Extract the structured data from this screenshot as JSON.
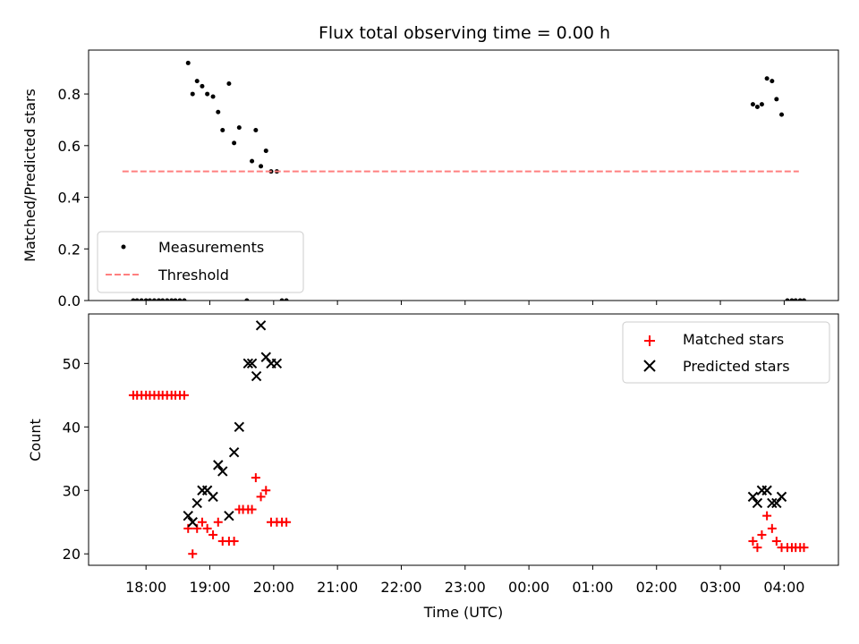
{
  "chart_data": [
    {
      "type": "scatter",
      "title": "Flux total observing time = 0.00 h",
      "xlabel": "",
      "ylabel": "Matched/Predicted stars",
      "ylim": [
        0,
        0.97
      ],
      "yticks": [
        "0.0",
        "0.2",
        "0.4",
        "0.6",
        "0.8"
      ],
      "ytick_values": [
        0,
        0.2,
        0.4,
        0.6,
        0.8
      ],
      "legend_position": "lower-left",
      "series": [
        {
          "name": "Measurements",
          "marker": "dot",
          "color": "#000000",
          "x_hours": [
            17.8,
            17.86,
            17.93,
            18.0,
            18.06,
            18.13,
            18.2,
            18.26,
            18.33,
            18.4,
            18.46,
            18.53,
            18.6,
            18.66,
            18.73,
            18.8,
            18.88,
            18.96,
            19.05,
            19.13,
            19.2,
            19.3,
            19.38,
            19.46,
            19.58,
            19.66,
            19.72,
            19.8,
            19.88,
            19.96,
            20.05,
            20.13,
            20.2,
            27.51,
            27.58,
            27.65,
            27.73,
            27.81,
            27.88,
            27.96,
            28.05,
            28.12,
            28.18,
            28.25,
            28.31
          ],
          "y": [
            0,
            0,
            0,
            0,
            0,
            0,
            0,
            0,
            0,
            0,
            0,
            0,
            0,
            0.92,
            0.8,
            0.85,
            0.83,
            0.8,
            0.79,
            0.73,
            0.66,
            0.84,
            0.61,
            0.67,
            0,
            0.54,
            0.66,
            0.52,
            0.58,
            0.5,
            0.5,
            0,
            0,
            0.76,
            0.75,
            0.76,
            0.86,
            0.85,
            0.78,
            0.72,
            0,
            0,
            0,
            0,
            0
          ]
        },
        {
          "name": "Threshold",
          "marker": "dashed-line",
          "color": "#ff7f7f",
          "x_hours": [
            17.63,
            28.23
          ],
          "y": [
            0.5,
            0.5
          ]
        }
      ]
    },
    {
      "type": "scatter",
      "title": "",
      "xlabel": "Time (UTC)",
      "ylabel": "Count",
      "ylim": [
        18.2,
        57.8
      ],
      "yticks": [
        "20",
        "30",
        "40",
        "50"
      ],
      "ytick_values": [
        20,
        30,
        40,
        50
      ],
      "xticks": [
        "18:00",
        "19:00",
        "20:00",
        "21:00",
        "22:00",
        "23:00",
        "00:00",
        "01:00",
        "02:00",
        "03:00",
        "04:00"
      ],
      "xtick_hours": [
        18,
        19,
        20,
        21,
        22,
        23,
        24,
        25,
        26,
        27,
        28
      ],
      "xlim_hours": [
        17.1,
        28.85
      ],
      "legend_position": "upper-right",
      "series": [
        {
          "name": "Matched stars",
          "marker": "plus",
          "color": "#ff0000",
          "x_hours": [
            17.8,
            17.86,
            17.93,
            18.0,
            18.06,
            18.13,
            18.2,
            18.26,
            18.33,
            18.4,
            18.46,
            18.53,
            18.6,
            18.66,
            18.73,
            18.8,
            18.88,
            18.96,
            19.05,
            19.13,
            19.2,
            19.3,
            19.38,
            19.46,
            19.52,
            19.6,
            19.66,
            19.72,
            19.8,
            19.88,
            19.96,
            20.05,
            20.13,
            20.2,
            27.51,
            27.58,
            27.65,
            27.73,
            27.81,
            27.88,
            27.96,
            28.05,
            28.12,
            28.18,
            28.25,
            28.31
          ],
          "y": [
            45,
            45,
            45,
            45,
            45,
            45,
            45,
            45,
            45,
            45,
            45,
            45,
            45,
            24,
            20,
            24,
            25,
            24,
            23,
            25,
            22,
            22,
            22,
            27,
            27,
            27,
            27,
            32,
            29,
            30,
            25,
            25,
            25,
            25,
            22,
            21,
            23,
            26,
            24,
            22,
            21,
            21,
            21,
            21,
            21,
            21
          ]
        },
        {
          "name": "Predicted stars",
          "marker": "x",
          "color": "#000000",
          "x_hours": [
            18.66,
            18.73,
            18.8,
            18.88,
            18.96,
            19.05,
            19.13,
            19.2,
            19.3,
            19.38,
            19.46,
            19.6,
            19.66,
            19.73,
            19.8,
            19.88,
            19.96,
            20.05,
            27.51,
            27.58,
            27.65,
            27.73,
            27.81,
            27.88,
            27.96
          ],
          "y": [
            26,
            25,
            28,
            30,
            30,
            29,
            34,
            33,
            26,
            36,
            40,
            50,
            50,
            48,
            56,
            51,
            50,
            50,
            29,
            28,
            30,
            30,
            28,
            28,
            29
          ]
        }
      ]
    }
  ]
}
